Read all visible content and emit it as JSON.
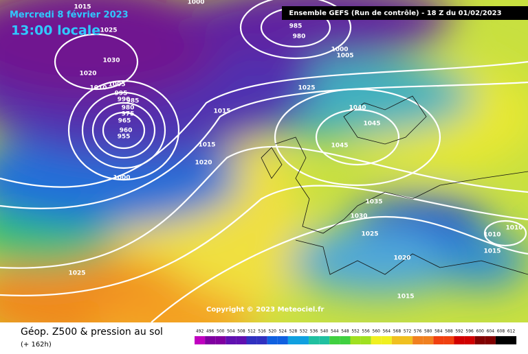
{
  "header": {
    "date": "Mercredi 8 février 2023",
    "time": "13:00 locale",
    "run": "Ensemble GEFS  (Run de contrôle)  -  18 Z du 01/02/2023"
  },
  "copyright": "Copyright © 2023 Meteociel.fr",
  "footer": {
    "title": "Géop. Z500 & pression au sol",
    "subtitle": "(+ 162h)"
  },
  "legend": {
    "values": [
      492,
      496,
      500,
      504,
      508,
      512,
      516,
      520,
      524,
      528,
      532,
      536,
      540,
      544,
      548,
      552,
      556,
      560,
      564,
      568,
      572,
      576,
      580,
      584,
      588,
      592,
      596,
      600,
      604,
      608,
      612
    ]
  },
  "isobar_labels": [
    "1015",
    "1025",
    "1030",
    "1020",
    "1010",
    "1005",
    "995",
    "990",
    "985",
    "980",
    "975",
    "965",
    "960",
    "955",
    "1000",
    "985",
    "980",
    "1000",
    "1005",
    "1025",
    "1015",
    "1015",
    "1020",
    "1040",
    "1045",
    "1045",
    "1035",
    "1030",
    "1025",
    "1020",
    "1015",
    "1010",
    "1010",
    "1015",
    "1025",
    "1000"
  ]
}
